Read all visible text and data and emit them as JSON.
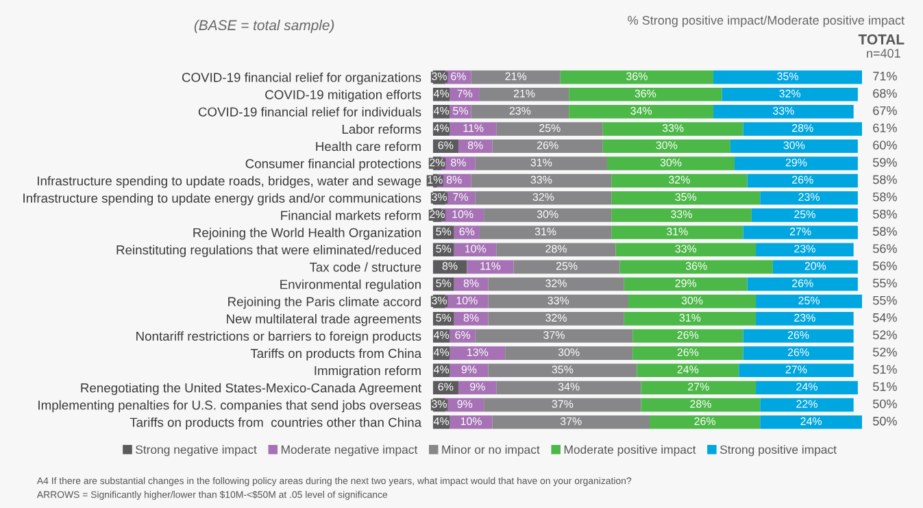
{
  "chart_data": {
    "type": "bar",
    "orientation": "horizontal",
    "stacked": true,
    "legend": "bottom",
    "grid": false,
    "tick_labels": "y",
    "categories": [
      "COVID-19 financial relief for organizations",
      "COVID-19 mitigation efforts",
      "COVID-19 financial relief for individuals",
      "Labor reforms",
      "Health care reform",
      "Consumer financial protections",
      "Infrastructure spending to update roads, bridges, water and sewage",
      "Infrastructure spending to update energy grids and/or communications",
      "Financial markets reform",
      "Rejoining the World Health Organization",
      "Reinstituting regulations that were eliminated/reduced",
      "Tax code / structure",
      "Environmental regulation",
      "Rejoining the Paris climate accord",
      "New multilateral trade agreements",
      "Nontariff restrictions or barriers to foreign products",
      "Tariffs on products from China",
      "Immigration reform",
      "Renegotiating the United States-Mexico-Canada Agreement",
      "Implementing penalties for U.S. companies that send jobs overseas",
      "Tariffs on products from  countries other than China"
    ],
    "series": [
      {
        "name": "Strong negative impact",
        "color": "#5b5b5d",
        "values": [
          3,
          4,
          4,
          4,
          6,
          2,
          1,
          3,
          2,
          5,
          5,
          8,
          5,
          3,
          5,
          4,
          4,
          4,
          6,
          3,
          4
        ],
        "value_labels": [
          "3%",
          "4%",
          "4%",
          "4%",
          "6%",
          "2%",
          "1%",
          "3%",
          "2%",
          "5%",
          "5%",
          "8%",
          "5%",
          "3%",
          "5%",
          "4%",
          "4%",
          "4%",
          "6%",
          "3%",
          "4%"
        ]
      },
      {
        "name": "Moderate negative impact",
        "color": "#a672b5",
        "values": [
          6,
          7,
          5,
          11,
          8,
          8,
          8,
          7,
          10,
          6,
          10,
          11,
          8,
          10,
          8,
          6,
          13,
          9,
          9,
          9,
          10
        ],
        "value_labels": [
          "6%",
          "7%",
          "5%",
          "11%",
          "8%",
          "8%",
          "8%",
          "7%",
          "10%",
          "6%",
          "10%",
          "11%",
          "8%",
          "10%",
          "8%",
          "6%",
          "13%",
          "9%",
          "9%",
          "9%",
          "10%"
        ]
      },
      {
        "name": "Minor or no impact",
        "color": "#87878a",
        "values": [
          21,
          21,
          23,
          25,
          26,
          31,
          33,
          32,
          30,
          31,
          28,
          25,
          32,
          33,
          32,
          37,
          30,
          35,
          34,
          37,
          37
        ],
        "value_labels": [
          "21%",
          "21%",
          "23%",
          "25%",
          "26%",
          "31%",
          "33%",
          "32%",
          "30%",
          "31%",
          "28%",
          "25%",
          "32%",
          "33%",
          "32%",
          "37%",
          "30%",
          "35%",
          "34%",
          "37%",
          "37%"
        ]
      },
      {
        "name": "Moderate positive impact",
        "color": "#4cb848",
        "values": [
          36,
          36,
          34,
          33,
          30,
          30,
          32,
          35,
          33,
          31,
          33,
          36,
          29,
          30,
          31,
          26,
          26,
          24,
          27,
          28,
          26
        ],
        "value_labels": [
          "36%",
          "36%",
          "34%",
          "33%",
          "30%",
          "30%",
          "32%",
          "35%",
          "33%",
          "31%",
          "33%",
          "36%",
          "29%",
          "30%",
          "31%",
          "26%",
          "26%",
          "24%",
          "27%",
          "28%",
          "26%"
        ]
      },
      {
        "name": "Strong positive impact",
        "color": "#00a6e0",
        "values": [
          35,
          32,
          33,
          28,
          30,
          29,
          26,
          23,
          25,
          27,
          23,
          20,
          26,
          25,
          23,
          26,
          26,
          27,
          24,
          22,
          24
        ],
        "value_labels": [
          "35%",
          "32%",
          "33%",
          "28%",
          "30%",
          "29%",
          "26%",
          "23%",
          "25%",
          "27%",
          "23%",
          "20%",
          "26%",
          "25%",
          "23%",
          "26%",
          "26%",
          "27%",
          "24%",
          "22%",
          "24%"
        ]
      }
    ],
    "annotations": [
      "(BASE = total sample)",
      "% Strong positive impact/Moderate positive impact",
      "TOTAL",
      "n=401",
      "A4 If there are substantial changes in the following policy areas during the next two years, what impact would that have on your organization?",
      "ARROWS = Significantly higher/lower than $10M-<$50M at .05 level of significance",
      "71%",
      "68%",
      "67%",
      "61%",
      "60%",
      "59%",
      "58%",
      "58%",
      "58%",
      "58%",
      "56%",
      "56%",
      "55%",
      "55%",
      "54%",
      "52%",
      "52%",
      "51%",
      "51%",
      "50%",
      "50%"
    ]
  }
}
